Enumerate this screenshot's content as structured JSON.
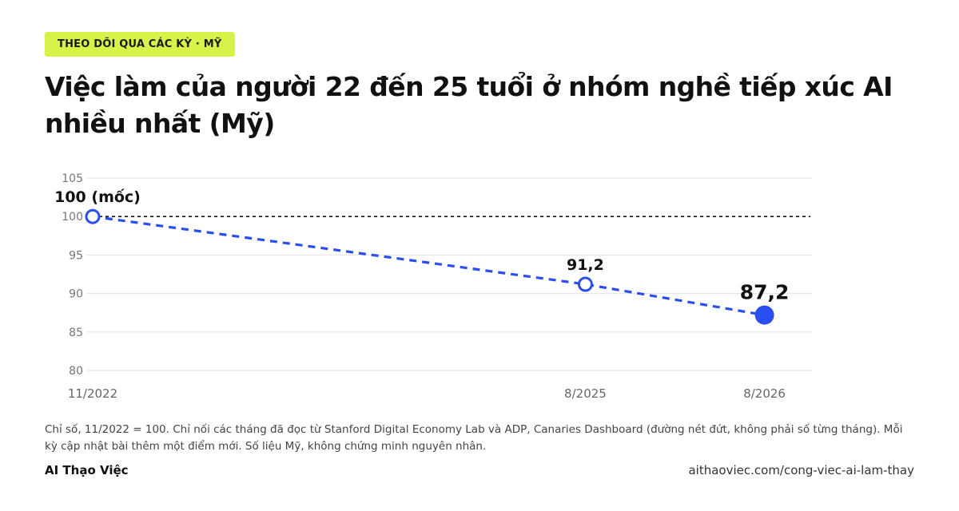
{
  "badge": "THEO DÕI QUA CÁC KỲ · MỸ",
  "title": "Việc làm của người 22 đến 25 tuổi ở nhóm nghề tiếp xúc AI nhiều nhất (Mỹ)",
  "note": "Chỉ số, 11/2022 = 100. Chỉ nối các tháng đã đọc từ Stanford Digital Economy Lab và ADP, Canaries Dashboard (đường nét đứt, không phải số từng tháng). Mỗi kỳ cập nhật bài thêm một điểm mới. Số liệu Mỹ, không chứng minh nguyên nhân.",
  "brand": "AI Thạo Việc",
  "url": "aithaoviec.com/cong-viec-ai-lam-thay",
  "colors": {
    "accent": "#2b4ef0",
    "badge_bg": "#d9f24a",
    "baseline": "#111111",
    "grid": "#e6e6e6"
  },
  "chart_data": {
    "type": "line",
    "x": [
      "11/2022",
      "8/2025",
      "8/2026"
    ],
    "x_months": [
      0,
      33,
      45
    ],
    "values": [
      100,
      91.2,
      87.2
    ],
    "point_labels": [
      "100 (mốc)",
      "91,2",
      "87,2"
    ],
    "highlight_index": 2,
    "ylim": [
      80,
      105
    ],
    "yticks": [
      "80",
      "85",
      "90",
      "95",
      "100",
      "105"
    ],
    "baseline": 100,
    "line_style": "dashed",
    "grid": true
  }
}
